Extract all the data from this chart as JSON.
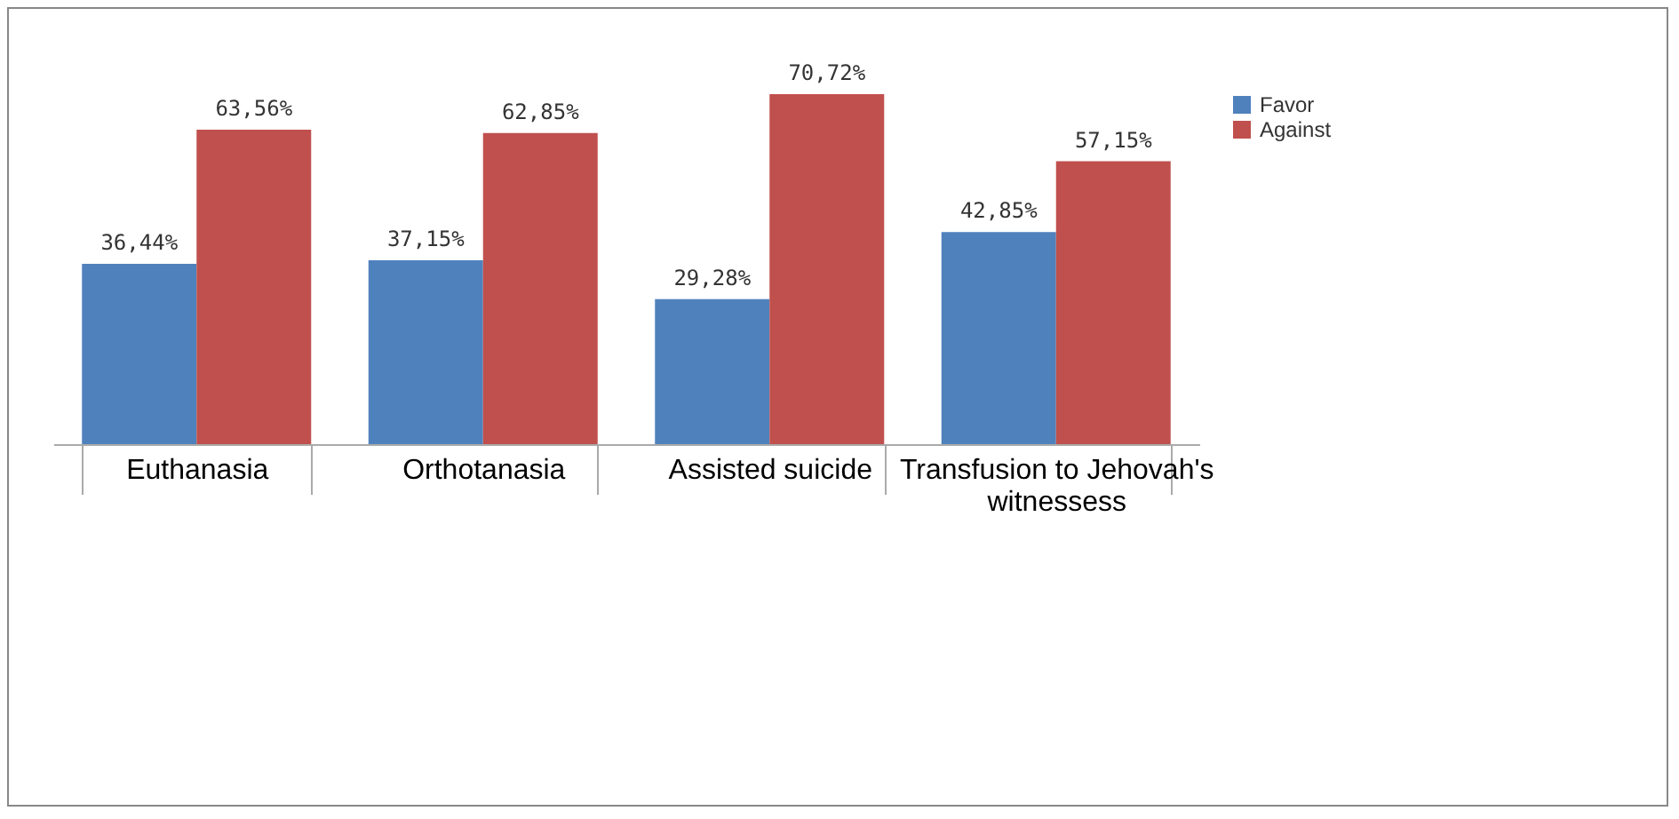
{
  "chart_data": {
    "type": "bar",
    "categories": [
      "Euthanasia",
      "Orthotanasia",
      "Assisted suicide",
      "Transfusion to Jehovah's witnessess"
    ],
    "series": [
      {
        "name": "Favor",
        "color": "#4f81bd",
        "values": [
          36.44,
          37.15,
          29.28,
          42.85
        ],
        "value_labels": [
          "36,44%",
          "37,15%",
          "29,28%",
          "42,85%"
        ]
      },
      {
        "name": "Against",
        "color": "#c0504d",
        "values": [
          63.56,
          62.85,
          70.72,
          57.15
        ],
        "value_labels": [
          "63,56%",
          "62,85%",
          "70,72%",
          "57,15%"
        ]
      }
    ],
    "legend": "right",
    "grid": false
  }
}
